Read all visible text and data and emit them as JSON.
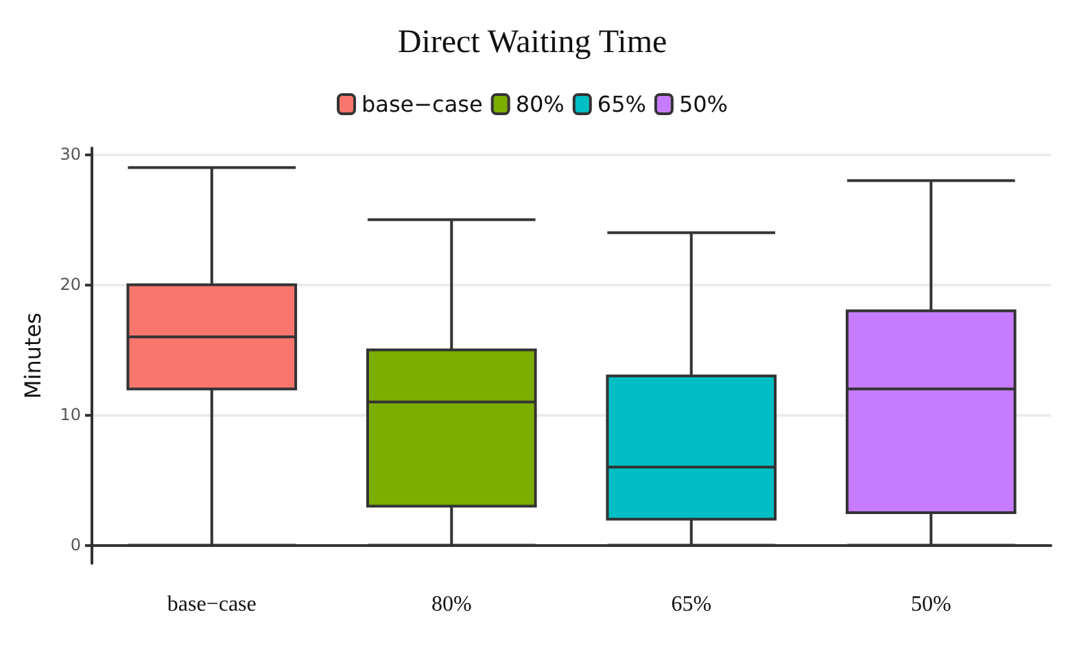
{
  "chart_data": {
    "type": "box",
    "title": "Direct Waiting Time",
    "ylabel": "Minutes",
    "categories": [
      "base−case",
      "80%",
      "65%",
      "50%"
    ],
    "series": [
      {
        "name": "base−case",
        "color": "#f8766d",
        "boxes": [
          {
            "low": 0,
            "q1": 12,
            "median": 16,
            "q3": 20,
            "high": 29
          },
          null,
          null,
          null
        ]
      },
      {
        "name": "80%",
        "color": "#7cae00",
        "boxes": [
          null,
          {
            "low": 0,
            "q1": 3,
            "median": 11,
            "q3": 15,
            "high": 25
          },
          null,
          null
        ]
      },
      {
        "name": "65%",
        "color": "#00bfc4",
        "boxes": [
          null,
          null,
          {
            "low": 0,
            "q1": 2,
            "median": 6,
            "q3": 13,
            "high": 24
          },
          null
        ]
      },
      {
        "name": "50%",
        "color": "#c77cff",
        "boxes": [
          null,
          null,
          null,
          {
            "low": 0,
            "q1": 2.5,
            "median": 12,
            "q3": 18,
            "high": 28
          }
        ]
      }
    ],
    "ylim": [
      -1.4,
      30.5
    ],
    "yticks": [
      0,
      10,
      20,
      30
    ],
    "grid": "y",
    "legend": "top"
  }
}
